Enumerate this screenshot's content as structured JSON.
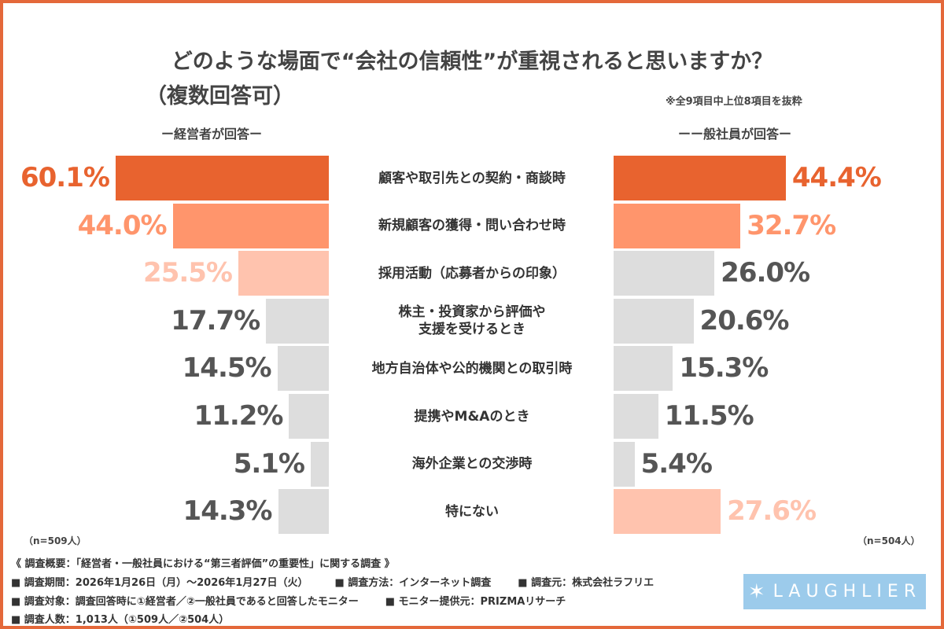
{
  "chart_data": {
    "type": "bar",
    "title": "どのような場面で“会社の信頼性”が重視されると思いますか？",
    "subtitle": "（複数回答可）",
    "note": "※全9項目中上位8項目を抜粋",
    "categories": [
      "顧客や取引先との契約・商談時",
      "新規顧客の獲得・問い合わせ時",
      "採用活動（応募者からの印象）",
      "株主・投資家から評価や\n支援を受けるとき",
      "地方自治体や公的機関との取引時",
      "提携やM&Aのとき",
      "海外企業との交渉時",
      "特にない"
    ],
    "series": [
      {
        "name": "ー経営者が回答ー",
        "values": [
          60.1,
          44.0,
          25.5,
          17.7,
          14.5,
          11.2,
          5.1,
          14.3
        ],
        "labels": [
          "60.1%",
          "44.0%",
          "25.5%",
          "17.7%",
          "14.5%",
          "11.2%",
          "5.1%",
          "14.3%"
        ],
        "n": "（n=509人）"
      },
      {
        "name": "ーー般社員が回答ー",
        "values": [
          44.4,
          32.7,
          26.0,
          20.6,
          15.3,
          11.5,
          5.4,
          27.6
        ],
        "labels": [
          "44.4%",
          "32.7%",
          "26.0%",
          "20.6%",
          "15.3%",
          "11.5%",
          "5.4%",
          "27.6%"
        ],
        "n": "（n=504人）"
      }
    ],
    "colors": {
      "rank1": "#E8632F",
      "rank2": "#FF956C",
      "rank3": "#FFC3AE",
      "other": "#DDDDDD",
      "label_other": "#555555"
    },
    "highlight": [
      [
        1,
        2,
        3,
        0,
        0,
        0,
        0,
        0
      ],
      [
        1,
        2,
        0,
        0,
        0,
        0,
        0,
        3
      ]
    ]
  },
  "footer": {
    "summary": "《 調査概要：「経営者・一般社員における“第三者評価”の重要性」に関する調査 》",
    "line1": [
      "■ 調査期間：2026年1月26日（月）〜2026年1月27日（火）",
      "■ 調査方法：インターネット調査",
      "■ 調査元：株式会社ラフリエ"
    ],
    "line2": [
      "■ 調査対象：調査回答時に①経営者／②一般社員であると回答したモニター",
      "■ モニター提供元：PRIZMAリサーチ"
    ],
    "line3": "■ 調査人数：1,013人（①509人／②504人）",
    "logo": "LAUGHLIER"
  }
}
